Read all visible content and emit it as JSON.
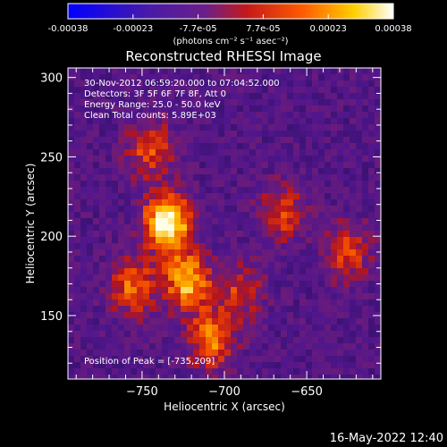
{
  "chart_data": {
    "type": "heatmap",
    "title": "Reconstructed RHESSI Image",
    "xlabel": "Heliocentric X (arcsec)",
    "ylabel": "Heliocentric Y (arcsec)",
    "xlim": [
      -795,
      -605
    ],
    "ylim": [
      110,
      306
    ],
    "xticks": [
      -750,
      -700,
      -650
    ],
    "yticks": [
      150,
      200,
      250,
      300
    ],
    "colorbar": {
      "ticks": [
        "-0.00038",
        "-0.00023",
        "-7.7e-05",
        "7.7e-05",
        "0.00023",
        "0.00038"
      ],
      "units": "(photons cm⁻² s⁻¹ asec⁻²)",
      "range": [
        -0.00038,
        0.00038
      ]
    },
    "info_lines": [
      "30-Nov-2012 06:59:20.000 to 07:04:52.000",
      "Detectors: 3F 5F 6F 7F 8F, Att 0",
      "Energy Range: 25.0 - 50.0 keV",
      "Clean    Total counts: 5.89E+03"
    ],
    "peak_label": "Position of Peak = [-735,209]",
    "sources": [
      {
        "x": -735,
        "y": 209,
        "peak": 1.0
      },
      {
        "x": -722,
        "y": 172,
        "peak": 0.75
      },
      {
        "x": -708,
        "y": 135,
        "peak": 0.6
      },
      {
        "x": -755,
        "y": 168,
        "peak": 0.55
      },
      {
        "x": -745,
        "y": 255,
        "peak": 0.5
      },
      {
        "x": -665,
        "y": 215,
        "peak": 0.45
      },
      {
        "x": -625,
        "y": 190,
        "peak": 0.45
      },
      {
        "x": -690,
        "y": 165,
        "peak": 0.4
      }
    ]
  },
  "timestamp": "16-May-2022 12:40"
}
